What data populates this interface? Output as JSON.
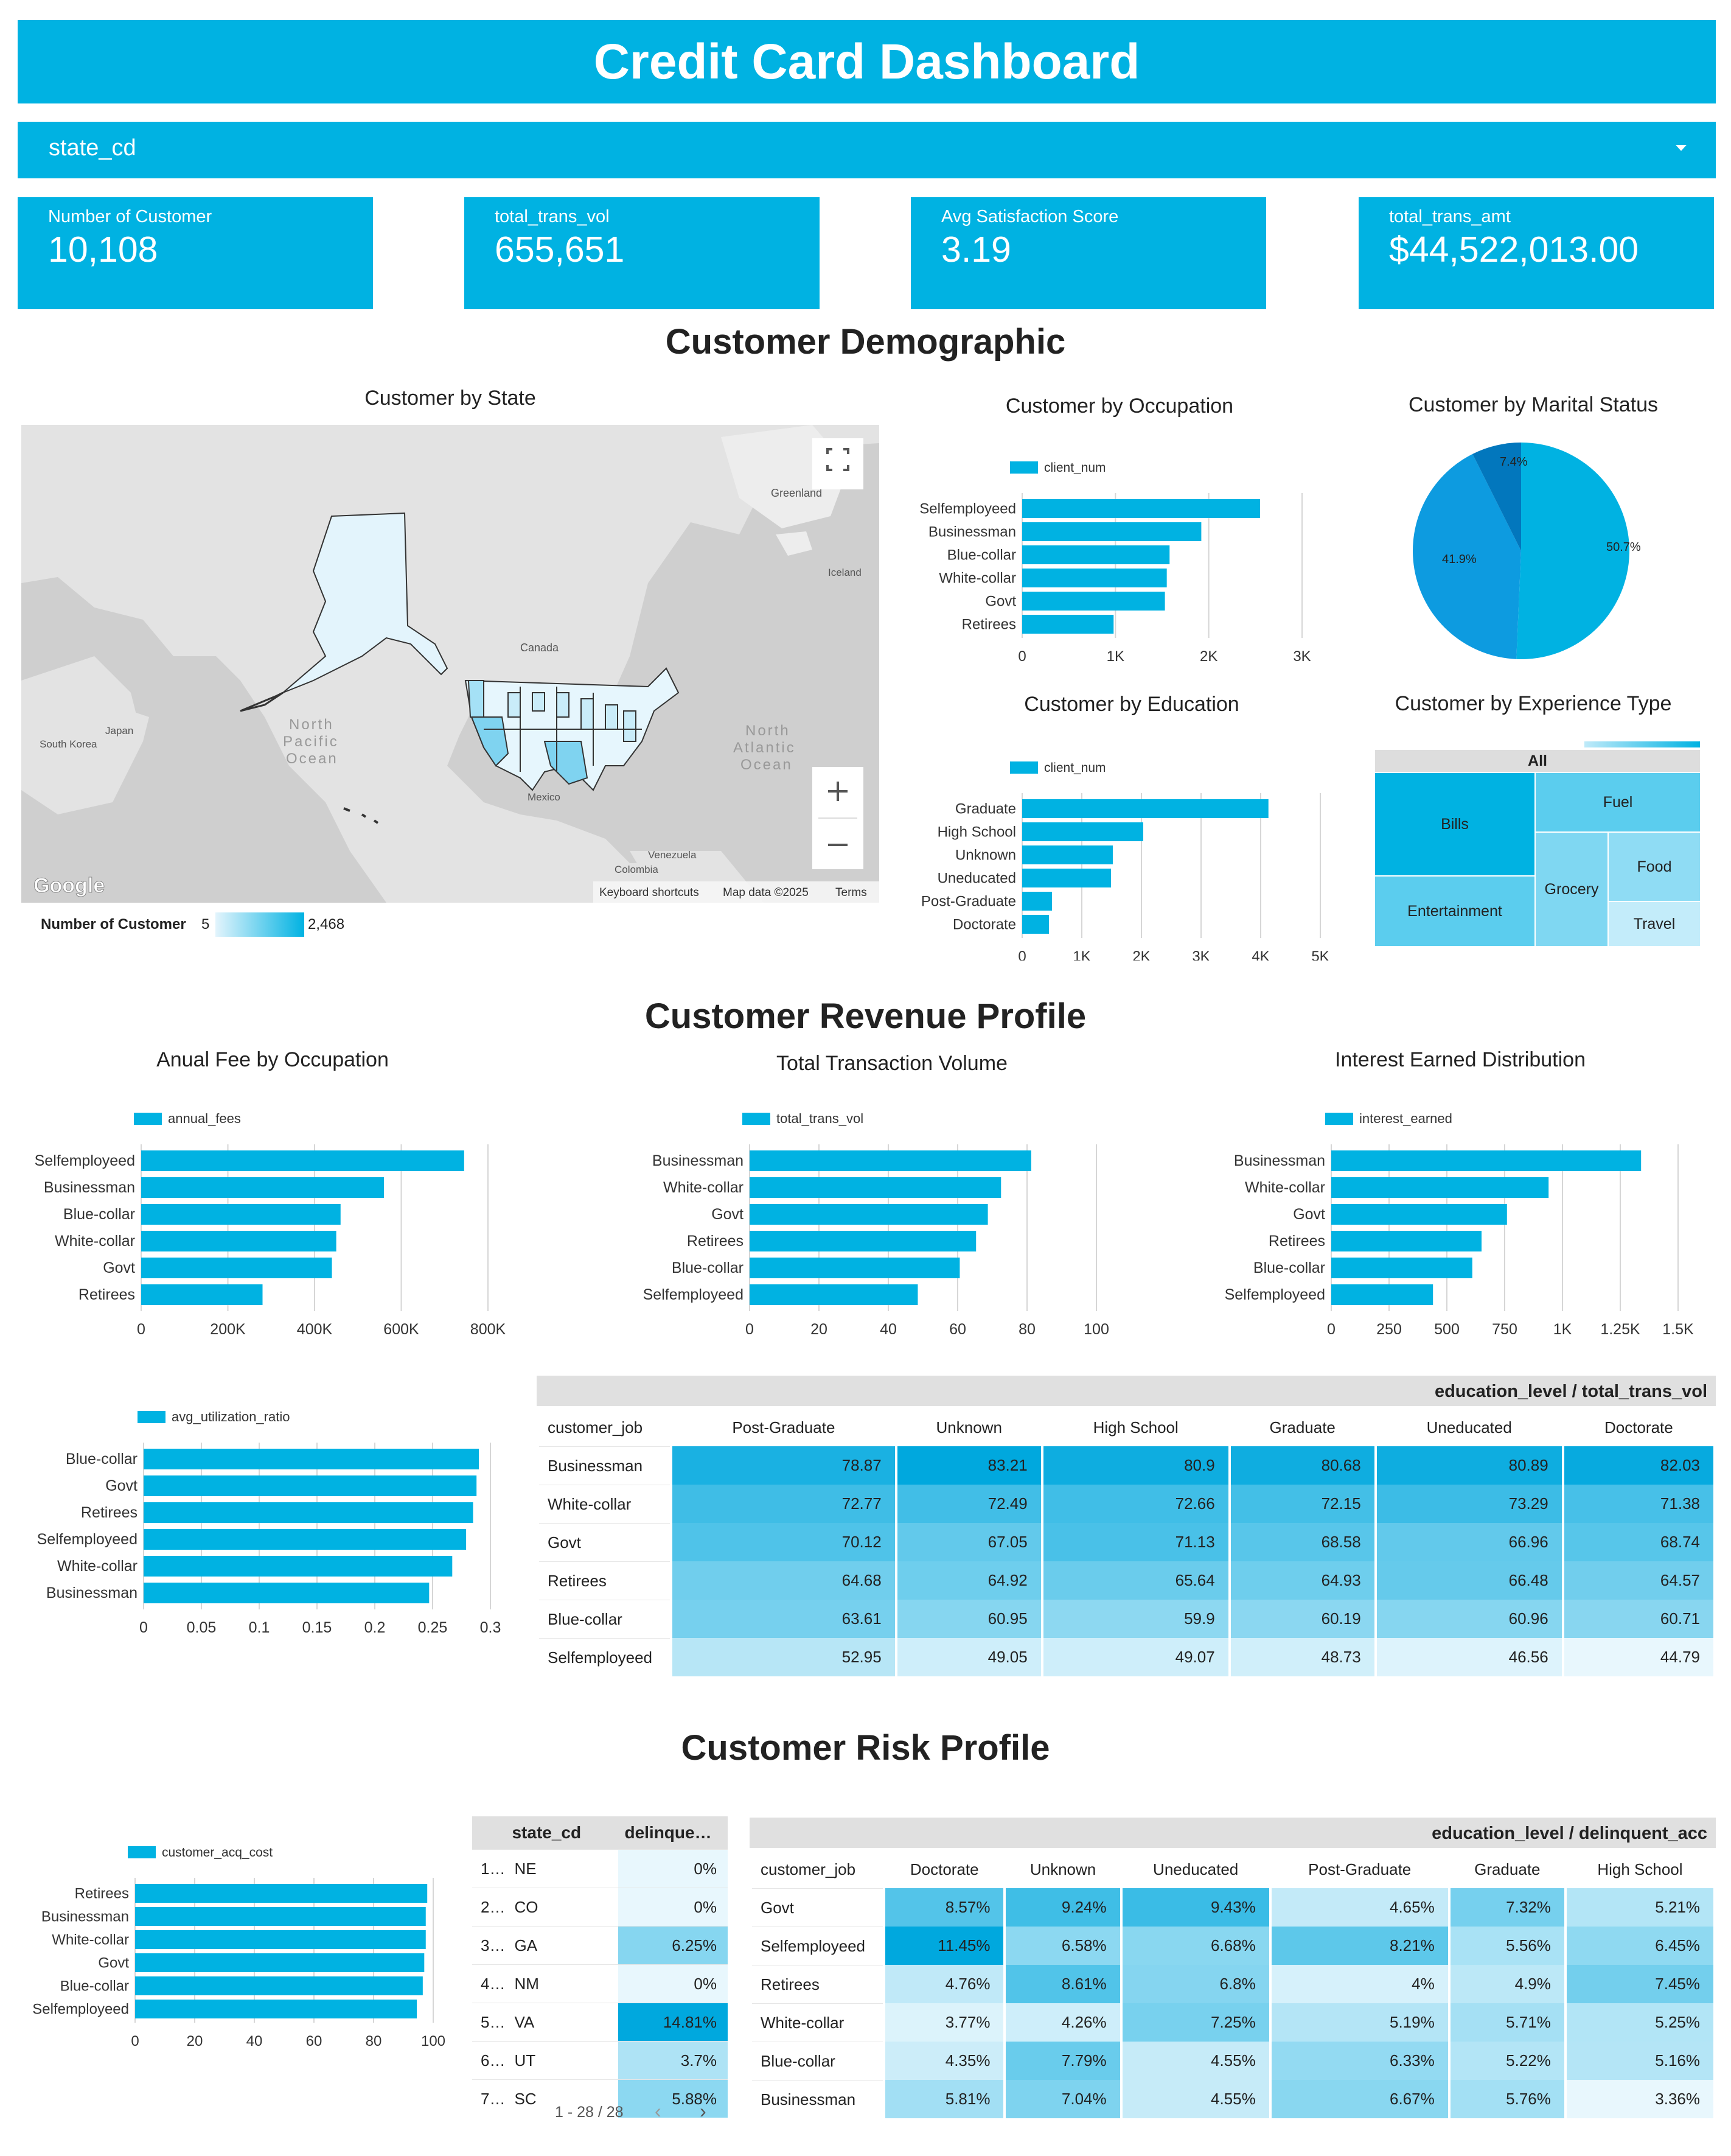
{
  "title": "Credit Card Dashboard",
  "filter": {
    "label": "state_cd"
  },
  "colors": {
    "accent": "#00b2e2",
    "dark": "#0288d1"
  },
  "kpis": [
    {
      "title": "Number of Customer",
      "value": "10,108"
    },
    {
      "title": "total_trans_vol",
      "value": "655,651"
    },
    {
      "title": "Avg Satisfaction Score",
      "value": "3.19"
    },
    {
      "title": "total_trans_amt",
      "value": "$44,522,013.00"
    }
  ],
  "sections": {
    "demographic": "Customer Demographic",
    "revenue": "Customer Revenue Profile",
    "risk": "Customer Risk Profile"
  },
  "map": {
    "title": "Customer by State",
    "labels": {
      "greenland": "Greenland",
      "iceland": "Iceland",
      "canada": "Canada",
      "mexico": "Mexico",
      "pacific": "North\nPacific\nOcean",
      "atlantic": "North\nAtlantic\nOcean",
      "japan": "Japan",
      "korea": "South Korea",
      "venezuela": "Venezuela",
      "colombia": "Colombia"
    },
    "footer": {
      "google": "Google",
      "shortcuts": "Keyboard shortcuts",
      "mapdata": "Map data ©2025",
      "terms": "Terms"
    },
    "legend": {
      "label": "Number of Customer",
      "min": "5",
      "max": "2,468"
    }
  },
  "chart_data": [
    {
      "id": "occupation",
      "type": "bar",
      "title": "Customer by Occupation",
      "legend": "client_num",
      "categories": [
        "Selfemployeed",
        "Businessman",
        "Blue-collar",
        "White-collar",
        "Govt",
        "Retirees"
      ],
      "values": [
        2550,
        1920,
        1580,
        1550,
        1530,
        980
      ],
      "ticks": [
        0,
        1000,
        2000,
        3000
      ],
      "tick_labels": [
        "0",
        "1K",
        "2K",
        "3K"
      ],
      "xlim": [
        0,
        3000
      ]
    },
    {
      "id": "education",
      "type": "bar",
      "title": "Customer by Education",
      "legend": "client_num",
      "categories": [
        "Graduate",
        "High School",
        "Unknown",
        "Uneducated",
        "Post-Graduate",
        "Doctorate"
      ],
      "values": [
        4130,
        2030,
        1520,
        1490,
        500,
        450
      ],
      "ticks": [
        0,
        1000,
        2000,
        3000,
        4000,
        5000
      ],
      "tick_labels": [
        "0",
        "1K",
        "2K",
        "3K",
        "4K",
        "5K"
      ],
      "xlim": [
        0,
        5000
      ]
    },
    {
      "id": "annual_fee",
      "type": "bar",
      "title": "Anual Fee by Occupation",
      "legend": "annual_fees",
      "categories": [
        "Selfemployeed",
        "Businessman",
        "Blue-collar",
        "White-collar",
        "Govt",
        "Retirees"
      ],
      "values": [
        745000,
        560000,
        460000,
        450000,
        440000,
        280000
      ],
      "ticks": [
        0,
        200000,
        400000,
        600000,
        800000
      ],
      "tick_labels": [
        "0",
        "200K",
        "400K",
        "600K",
        "800K"
      ],
      "xlim": [
        0,
        800000
      ]
    },
    {
      "id": "trans_vol",
      "type": "bar",
      "title": "Total Transaction Volume",
      "legend": "total_trans_vol",
      "categories": [
        "Businessman",
        "White-collar",
        "Govt",
        "Retirees",
        "Blue-collar",
        "Selfemployeed"
      ],
      "values": [
        81.2,
        72.5,
        68.7,
        65.3,
        60.6,
        48.5
      ],
      "ticks": [
        0,
        20,
        40,
        60,
        80,
        100
      ],
      "tick_labels": [
        "0",
        "20",
        "40",
        "60",
        "80",
        "100"
      ],
      "xlim": [
        0,
        100
      ]
    },
    {
      "id": "interest",
      "type": "bar",
      "title": "Interest Earned Distribution",
      "legend": "interest_earned",
      "categories": [
        "Businessman",
        "White-collar",
        "Govt",
        "Retirees",
        "Blue-collar",
        "Selfemployeed"
      ],
      "values": [
        1340,
        940,
        760,
        650,
        610,
        440
      ],
      "ticks": [
        0,
        250,
        500,
        750,
        1000,
        1250,
        1500
      ],
      "tick_labels": [
        "0",
        "250",
        "500",
        "750",
        "1K",
        "1.25K",
        "1.5K"
      ],
      "xlim": [
        0,
        1500
      ]
    },
    {
      "id": "utilization",
      "type": "bar",
      "title": "",
      "legend": "avg_utilization_ratio",
      "categories": [
        "Blue-collar",
        "Govt",
        "Retirees",
        "Selfemployeed",
        "White-collar",
        "Businessman"
      ],
      "values": [
        0.29,
        0.288,
        0.285,
        0.279,
        0.267,
        0.247
      ],
      "ticks": [
        0,
        0.05,
        0.1,
        0.15,
        0.2,
        0.25,
        0.3
      ],
      "tick_labels": [
        "0",
        "0.05",
        "0.1",
        "0.15",
        "0.2",
        "0.25",
        "0.3"
      ],
      "xlim": [
        0,
        0.3
      ]
    },
    {
      "id": "acq_cost",
      "type": "bar",
      "title": "",
      "legend": "customer_acq_cost",
      "categories": [
        "Retirees",
        "Businessman",
        "White-collar",
        "Govt",
        "Blue-collar",
        "Selfemployeed"
      ],
      "values": [
        98,
        97.5,
        97.5,
        97,
        96.5,
        94.5
      ],
      "ticks": [
        0,
        20,
        40,
        60,
        80,
        100
      ],
      "tick_labels": [
        "0",
        "20",
        "40",
        "60",
        "80",
        "100"
      ],
      "xlim": [
        0,
        100
      ]
    },
    {
      "id": "marital",
      "type": "pie",
      "title": "Customer by Marital Status",
      "slices": [
        {
          "label": "50.7%",
          "value": 50.7,
          "color": "#00b2e2"
        },
        {
          "label": "41.9%",
          "value": 41.9,
          "color": "#0d9be0"
        },
        {
          "label": "7.4%",
          "value": 7.4,
          "color": "#0277bd"
        }
      ]
    },
    {
      "id": "experience",
      "type": "treemap",
      "title": "Customer by Experience Type",
      "root": "All",
      "items": [
        "Bills",
        "Fuel",
        "Entertainment",
        "Grocery",
        "Food",
        "Travel"
      ]
    }
  ],
  "trans_vol_table": {
    "header": "education_level / total_trans_vol",
    "row_header": "customer_job",
    "columns": [
      "Post-Graduate",
      "Unknown",
      "High School",
      "Graduate",
      "Uneducated",
      "Doctorate"
    ],
    "rows": [
      {
        "job": "Businessman",
        "values": [
          "78.87",
          "83.21",
          "80.9",
          "80.68",
          "80.89",
          "82.03"
        ]
      },
      {
        "job": "White-collar",
        "values": [
          "72.77",
          "72.49",
          "72.66",
          "72.15",
          "73.29",
          "71.38"
        ]
      },
      {
        "job": "Govt",
        "values": [
          "70.12",
          "67.05",
          "71.13",
          "68.58",
          "66.96",
          "68.74"
        ]
      },
      {
        "job": "Retirees",
        "values": [
          "64.68",
          "64.92",
          "65.64",
          "64.93",
          "66.48",
          "64.57"
        ]
      },
      {
        "job": "Blue-collar",
        "values": [
          "63.61",
          "60.95",
          "59.9",
          "60.19",
          "60.96",
          "60.71"
        ]
      },
      {
        "job": "Selfemployeed",
        "values": [
          "52.95",
          "49.05",
          "49.07",
          "48.73",
          "46.56",
          "44.79"
        ]
      }
    ]
  },
  "state_table": {
    "columns": [
      "state_cd",
      "delinque…"
    ],
    "rows": [
      {
        "idx": "1…",
        "state": "NE",
        "value": "0%"
      },
      {
        "idx": "2…",
        "state": "CO",
        "value": "0%"
      },
      {
        "idx": "3…",
        "state": "GA",
        "value": "6.25%"
      },
      {
        "idx": "4…",
        "state": "NM",
        "value": "0%"
      },
      {
        "idx": "5…",
        "state": "VA",
        "value": "14.81%"
      },
      {
        "idx": "6…",
        "state": "UT",
        "value": "3.7%"
      },
      {
        "idx": "7…",
        "state": "SC",
        "value": "5.88%"
      }
    ],
    "pager": "1 - 28 / 28"
  },
  "delinquent_table": {
    "header": "education_level / delinquent_acc",
    "row_header": "customer_job",
    "columns": [
      "Doctorate",
      "Unknown",
      "Uneducated",
      "Post-Graduate",
      "Graduate",
      "High School"
    ],
    "rows": [
      {
        "job": "Govt",
        "values": [
          "8.57%",
          "9.24%",
          "9.43%",
          "4.65%",
          "7.32%",
          "5.21%"
        ]
      },
      {
        "job": "Selfemployeed",
        "values": [
          "11.45%",
          "6.58%",
          "6.68%",
          "8.21%",
          "5.56%",
          "6.45%"
        ]
      },
      {
        "job": "Retirees",
        "values": [
          "4.76%",
          "8.61%",
          "6.8%",
          "4%",
          "4.9%",
          "7.45%"
        ]
      },
      {
        "job": "White-collar",
        "values": [
          "3.77%",
          "4.26%",
          "7.25%",
          "5.19%",
          "5.71%",
          "5.25%"
        ]
      },
      {
        "job": "Blue-collar",
        "values": [
          "4.35%",
          "7.79%",
          "4.55%",
          "6.33%",
          "5.22%",
          "5.16%"
        ]
      },
      {
        "job": "Businessman",
        "values": [
          "5.81%",
          "7.04%",
          "4.55%",
          "6.67%",
          "5.76%",
          "3.36%"
        ]
      }
    ]
  }
}
